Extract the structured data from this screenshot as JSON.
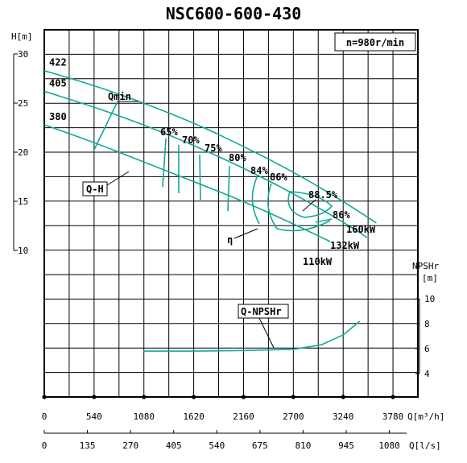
{
  "chart_data": {
    "type": "line",
    "title": "NSC600-600-430",
    "speed_label": "n=980r/min",
    "head_axis": {
      "label": "H[m]",
      "ticks": [
        "30",
        "25",
        "20",
        "15",
        "10"
      ],
      "range": [
        10,
        30
      ]
    },
    "npsh_axis": {
      "label": "NPSHr",
      "unit": "[m]",
      "ticks": [
        "10",
        "8",
        "6",
        "4"
      ],
      "range": [
        4,
        10
      ]
    },
    "x_axis_m3h": {
      "label": "Q[m³/h]",
      "ticks": [
        "0",
        "540",
        "1080",
        "1620",
        "2160",
        "2700",
        "3240",
        "3780"
      ],
      "range": [
        0,
        4050
      ]
    },
    "x_axis_ls": {
      "label": "Q[l/s]",
      "ticks": [
        "0",
        "135",
        "270",
        "405",
        "540",
        "675",
        "810",
        "945",
        "1080"
      ]
    },
    "grid": true,
    "head_curves": [
      {
        "name": "422",
        "x": [
          0,
          540,
          1080,
          1620,
          2160,
          2700,
          3240,
          3600
        ],
        "y": [
          28.3,
          26.8,
          25.0,
          23.0,
          20.6,
          18.0,
          15.0,
          12.8
        ]
      },
      {
        "name": "405",
        "x": [
          0,
          540,
          1080,
          1620,
          2160,
          2700,
          3240,
          3500
        ],
        "y": [
          26.2,
          24.6,
          22.8,
          20.7,
          18.4,
          15.8,
          12.9,
          11.3
        ]
      },
      {
        "name": "380",
        "x": [
          0,
          540,
          1080,
          1620,
          2160,
          2700,
          3100
        ],
        "y": [
          22.8,
          21.0,
          19.0,
          17.0,
          15.0,
          12.7,
          10.9
        ]
      }
    ],
    "efficiency_labels": [
      "65%",
      "70%",
      "75%",
      "80%",
      "84%",
      "86%",
      "88.5%",
      "86%"
    ],
    "power_labels": [
      "160kW",
      "132kW",
      "110kW"
    ],
    "npsh_curve": {
      "name": "Q-NPSHr",
      "x": [
        1080,
        1620,
        2160,
        2700,
        3000,
        3240,
        3420
      ],
      "y": [
        5.8,
        5.8,
        5.85,
        5.95,
        6.3,
        7.1,
        8.2
      ]
    },
    "annotations": [
      "Qmin",
      "Q-H",
      "η",
      "Q-NPSHr"
    ]
  }
}
